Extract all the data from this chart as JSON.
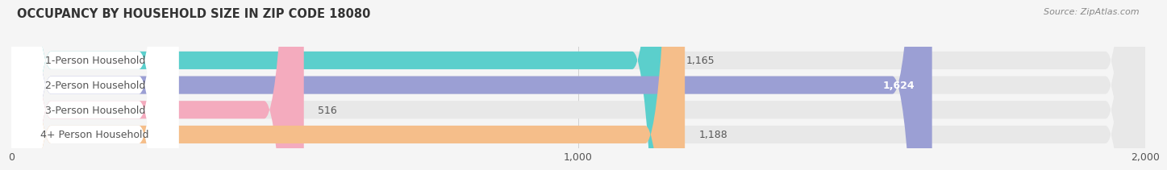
{
  "title": "OCCUPANCY BY HOUSEHOLD SIZE IN ZIP CODE 18080",
  "source": "Source: ZipAtlas.com",
  "categories": [
    "1-Person Household",
    "2-Person Household",
    "3-Person Household",
    "4+ Person Household"
  ],
  "values": [
    1165,
    1624,
    516,
    1188
  ],
  "bar_colors": [
    "#5BCFCC",
    "#9B9FD4",
    "#F4ABBE",
    "#F5BE8A"
  ],
  "bar_bg_color": "#E8E8E8",
  "xlim": [
    0,
    2000
  ],
  "xticks": [
    0,
    1000,
    2000
  ],
  "xtick_labels": [
    "0",
    "1,000",
    "2,000"
  ],
  "label_color": "#555555",
  "title_fontsize": 10.5,
  "tick_fontsize": 9,
  "bar_label_fontsize": 9,
  "category_fontsize": 9,
  "value_labels": [
    "1,165",
    "1,624",
    "516",
    "1,188"
  ],
  "background_color": "#F5F5F5",
  "value_label_color_inside": "#FFFFFF",
  "value_label_color_outside": "#555555"
}
